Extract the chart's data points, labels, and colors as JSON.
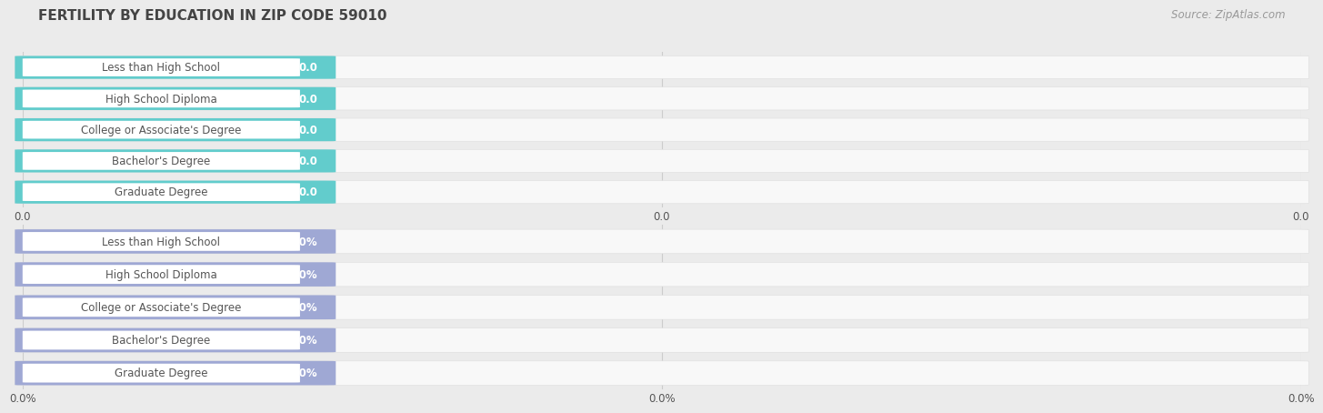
{
  "title": "FERTILITY BY EDUCATION IN ZIP CODE 59010",
  "source": "Source: ZipAtlas.com",
  "categories": [
    "Less than High School",
    "High School Diploma",
    "College or Associate's Degree",
    "Bachelor's Degree",
    "Graduate Degree"
  ],
  "top_values": [
    0.0,
    0.0,
    0.0,
    0.0,
    0.0
  ],
  "bottom_values": [
    0.0,
    0.0,
    0.0,
    0.0,
    0.0
  ],
  "top_bar_color": "#62CCCC",
  "bottom_bar_color": "#9FA8D4",
  "top_value_format": "0.0",
  "bottom_value_format": "0.0%",
  "top_xtick_labels": [
    "0.0",
    "0.0",
    "0.0"
  ],
  "bottom_xtick_labels": [
    "0.0%",
    "0.0%",
    "0.0%"
  ],
  "bg_color": "#EBEBEB",
  "row_bg_color": "#F8F8F8",
  "row_border_color": "#DDDDDD",
  "label_color": "#555555",
  "value_color": "#FFFFFF",
  "title_color": "#444444",
  "source_color": "#999999",
  "grid_color": "#CCCCCC",
  "title_fontsize": 11,
  "bar_label_fontsize": 8.5,
  "value_label_fontsize": 8.5,
  "axis_tick_fontsize": 8.5,
  "source_fontsize": 8.5,
  "n_categories": 5
}
